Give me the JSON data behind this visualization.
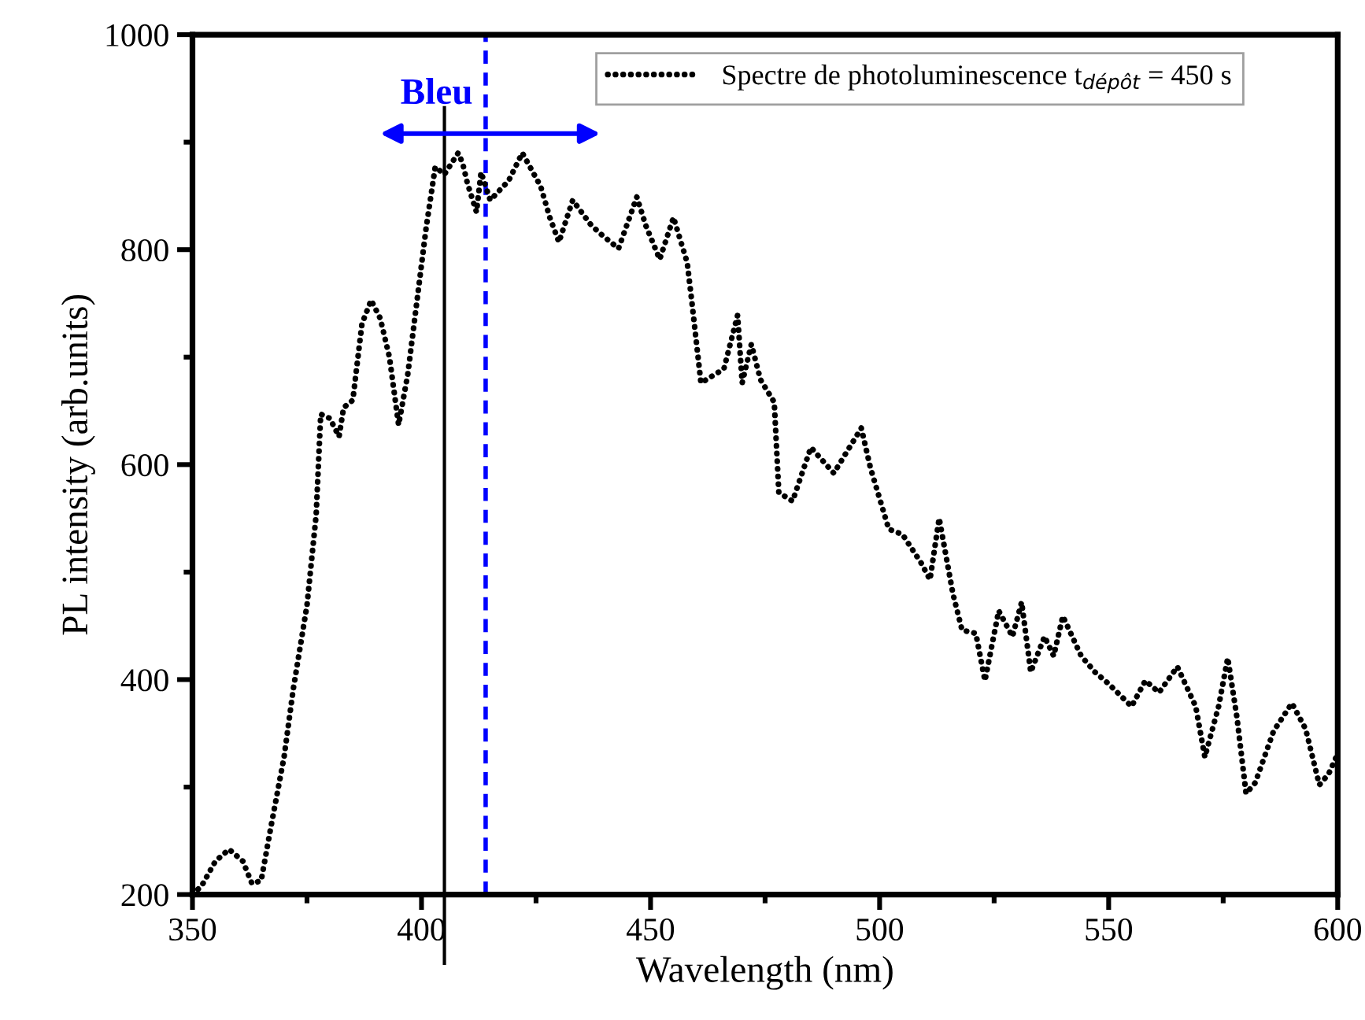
{
  "chart_data": {
    "type": "line",
    "xlabel": "Wavelength (nm)",
    "ylabel": "PL intensity (arb.units)",
    "xlim": [
      350,
      600
    ],
    "ylim": [
      200,
      1000
    ],
    "xticks": [
      350,
      {
        "value": 375,
        "label": null
      },
      400,
      {
        "value": 425,
        "label": null
      },
      450,
      {
        "value": 475,
        "label": null
      },
      500,
      {
        "value": 525,
        "label": null
      },
      550,
      {
        "value": 575,
        "label": null
      },
      600
    ],
    "yticks": [
      200,
      {
        "value": 300,
        "label": null
      },
      400,
      {
        "value": 500,
        "label": null
      },
      600,
      {
        "value": 700,
        "label": null
      },
      800,
      {
        "value": 900,
        "label": null
      },
      1000
    ],
    "grid": false,
    "legend": "top right",
    "marker": "none",
    "line_style": "dotted",
    "ref_lines": [
      {
        "axis": "x",
        "value": 405,
        "color": "#000000",
        "line_style": "solid"
      },
      {
        "axis": "x",
        "value": 414,
        "color": "#0000ff",
        "line_style": "dashed"
      }
    ],
    "annotations": [
      {
        "text": "Bleu",
        "x": 415,
        "y": 908
      }
    ],
    "series": [
      {
        "name": "Spectre de photoluminescence t$_{dépôt}$ = 450 s",
        "color": "#000000",
        "x": [
          350,
          352,
          355,
          358,
          361,
          363,
          365,
          367,
          370,
          372,
          375,
          377,
          378,
          380,
          382,
          383,
          385,
          387,
          389,
          391,
          393,
          395,
          397,
          399,
          401,
          403,
          405,
          408,
          409,
          410,
          412,
          413,
          415,
          419,
          422,
          426,
          428,
          430,
          433,
          437,
          439,
          443,
          447,
          449,
          452,
          455,
          458,
          459,
          461,
          466,
          469,
          470,
          472,
          474,
          477,
          478,
          481,
          485,
          490,
          496,
          498,
          502,
          505,
          509,
          511,
          513,
          516,
          518,
          521,
          523,
          526,
          529,
          531,
          533,
          536,
          538,
          540,
          544,
          547,
          550,
          555,
          558,
          561,
          565,
          569,
          571,
          574,
          576,
          578,
          580,
          582,
          586,
          590,
          593,
          596,
          598,
          600
        ],
        "values": [
          200,
          208,
          231,
          242,
          231,
          210,
          213,
          260,
          328,
          391,
          469,
          553,
          647,
          643,
          626,
          653,
          660,
          731,
          753,
          736,
          700,
          637,
          684,
          752,
          820,
          877,
          870,
          890,
          880,
          862,
          835,
          872,
          846,
          864,
          890,
          859,
          830,
          807,
          846,
          823,
          815,
          801,
          849,
          822,
          791,
          830,
          788,
          752,
          676,
          689,
          739,
          676,
          712,
          679,
          658,
          574,
          566,
          616,
          592,
          634,
          597,
          540,
          535,
          509,
          493,
          550,
          480,
          446,
          443,
          399,
          464,
          440,
          472,
          407,
          440,
          422,
          459,
          422,
          407,
          396,
          375,
          399,
          388,
          412,
          375,
          328,
          375,
          420,
          365,
          294,
          304,
          352,
          378,
          354,
          302,
          312,
          331
        ]
      }
    ]
  }
}
